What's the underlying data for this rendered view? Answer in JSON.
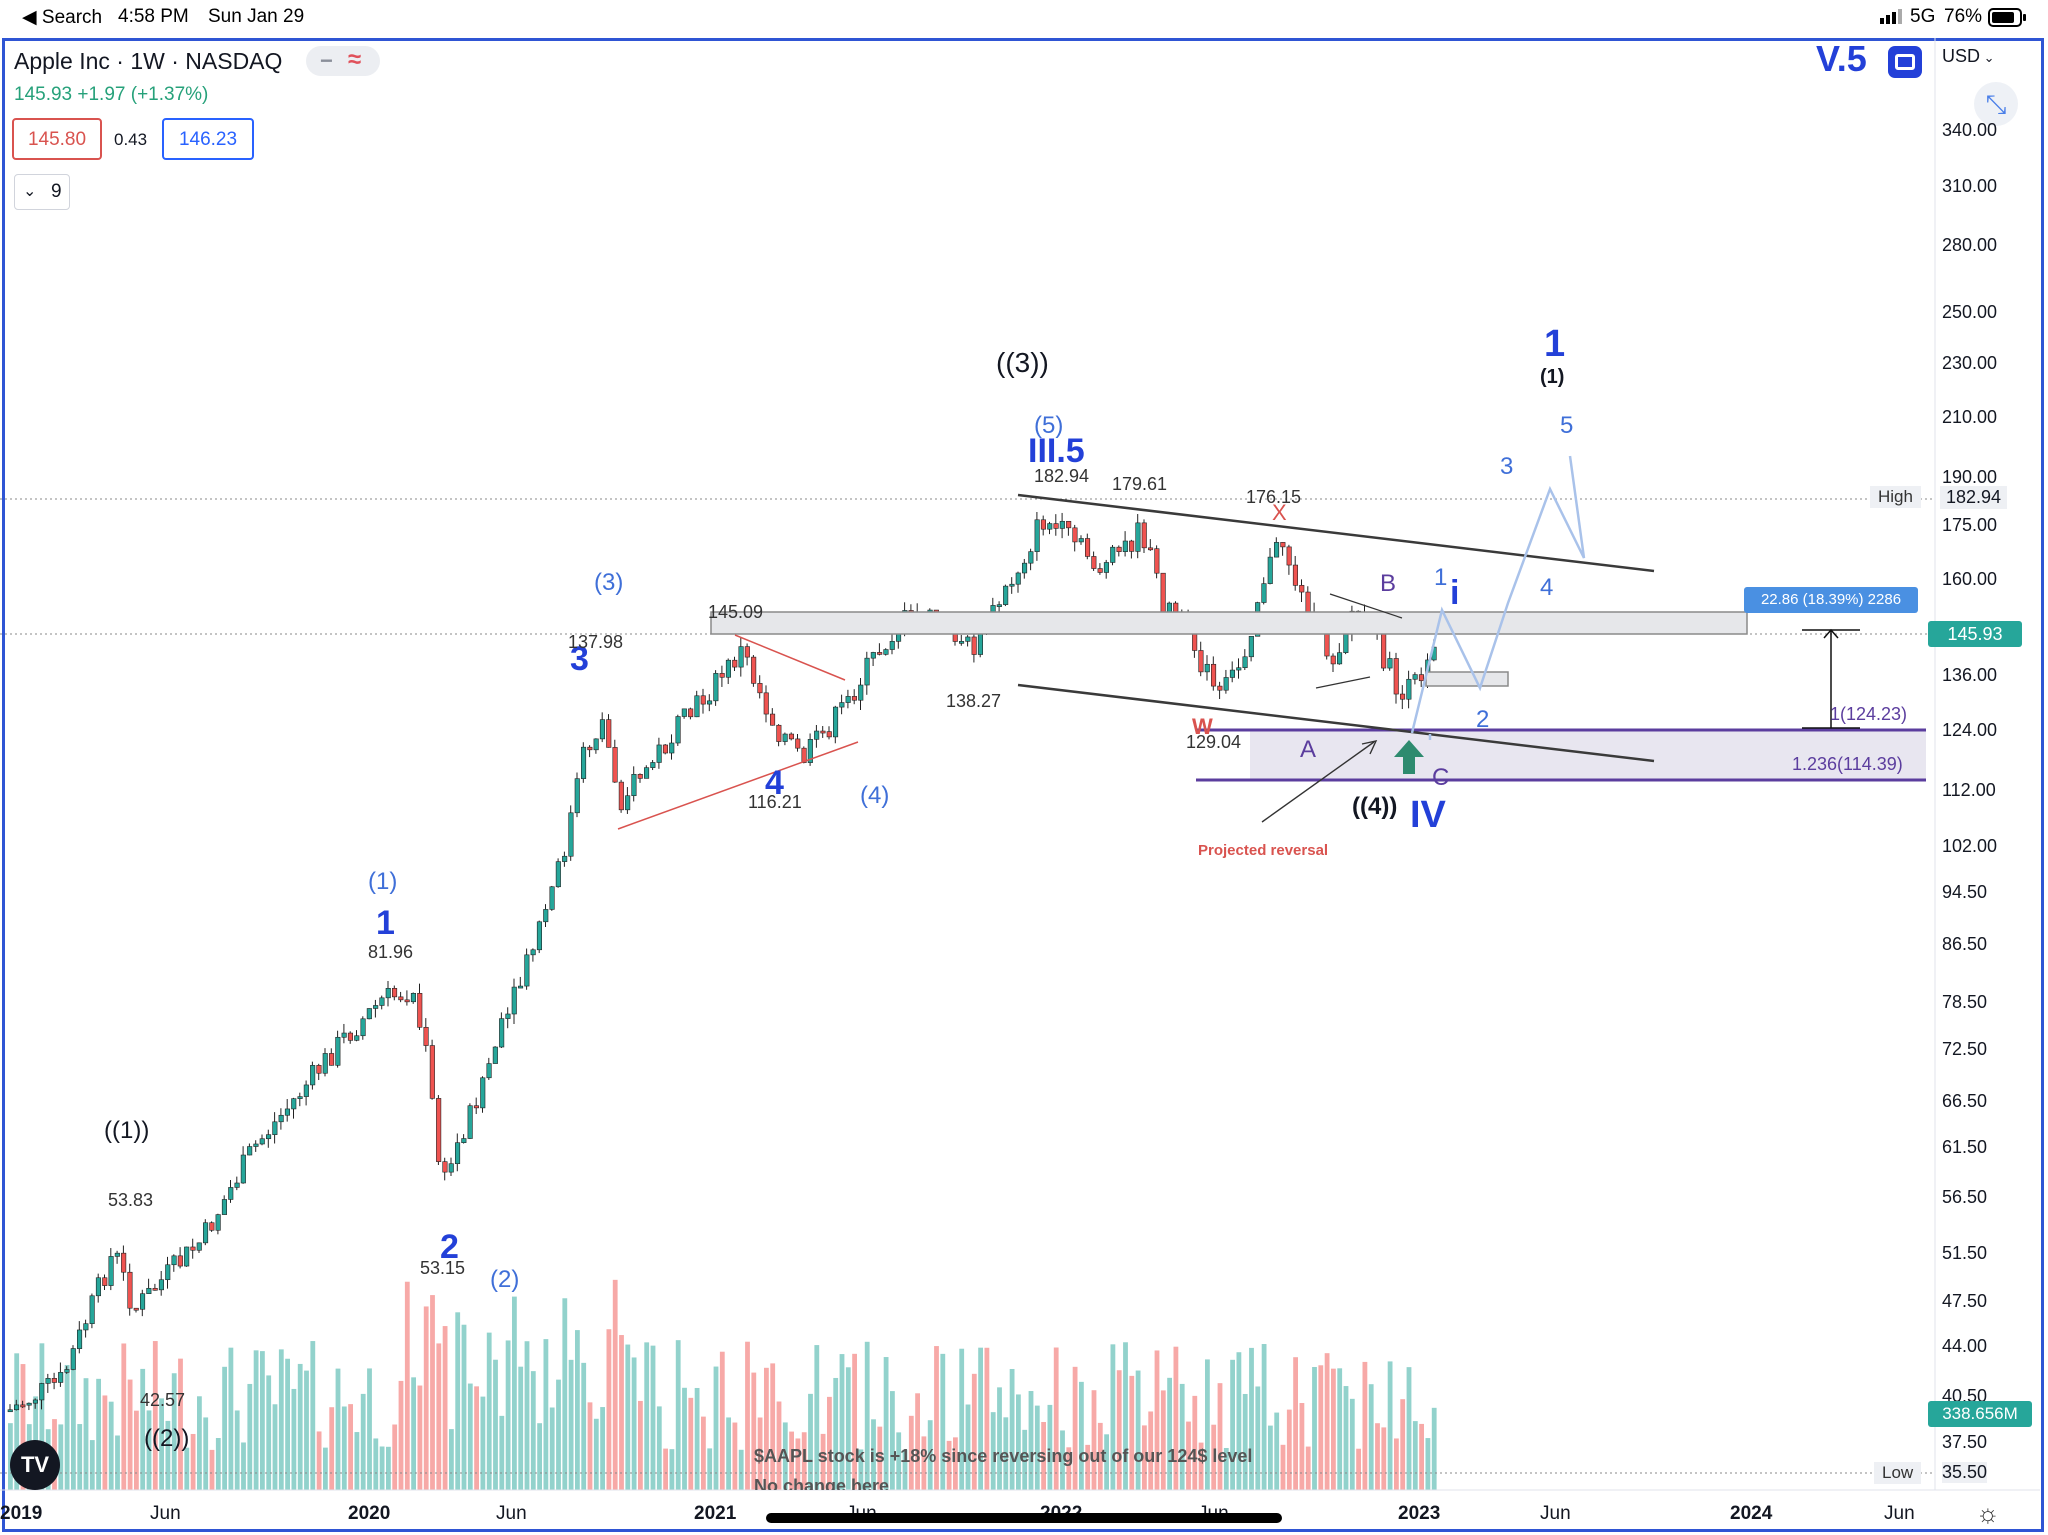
{
  "status_bar": {
    "back_label": "◀ Search",
    "time": "4:58 PM",
    "date": "Sun Jan 29",
    "network": "5G",
    "battery": "76%"
  },
  "header": {
    "symbol_title": "Apple Inc · 1W · NASDAQ",
    "last_price_change": "145.93 +1.97 (+1.37%)",
    "bid": "145.80",
    "spread": "0.43",
    "ask": "146.23",
    "indicators_label": "9",
    "version": "V.5",
    "currency": "USD"
  },
  "colors": {
    "up": "#26a69a",
    "down": "#ef5350",
    "accent": "#2340d8",
    "wave_blue": "#2a3fd6",
    "light_wave": "#3f6fd8",
    "purple": "#5b3d9e",
    "fib_zone": "#e8e6f0"
  },
  "y_axis": {
    "ticks": [
      "340.00",
      "310.00",
      "280.00",
      "250.00",
      "230.00",
      "210.00",
      "190.00",
      "175.00",
      "160.00",
      "136.00",
      "124.00",
      "112.00",
      "102.00",
      "94.50",
      "86.50",
      "78.50",
      "72.50",
      "66.50",
      "61.50",
      "56.50",
      "51.50",
      "47.50",
      "44.00",
      "40.50",
      "37.50",
      "35.50"
    ]
  },
  "x_axis": {
    "ticks": [
      "2019",
      "Jun",
      "2020",
      "Jun",
      "2021",
      "Jun",
      "2022",
      "Jun",
      "2023",
      "Jun",
      "2024",
      "Jun"
    ]
  },
  "price_badges": {
    "high_label": "High",
    "high_value": "182.94",
    "current": "145.93",
    "volume": "338.656M",
    "low_label": "Low",
    "low_value": "35.50",
    "measure": "22.86 (18.39%) 2286"
  },
  "annotations": {
    "wave_labels": [
      "((1))",
      "((2))",
      "(1)",
      "1",
      "2",
      "(2)",
      "3",
      "(3)",
      "4",
      "(4)",
      "((3))",
      "(5)",
      "III.5",
      "1",
      "(1)",
      "3",
      "5",
      "4",
      "1",
      "i",
      "2",
      "B",
      "A",
      "C",
      "((4))",
      "IV"
    ],
    "price_labels": [
      "53.83",
      "42.57",
      "81.96",
      "53.15",
      "137.98",
      "145.09",
      "116.21",
      "138.27",
      "182.94",
      "179.61",
      "176.15",
      "129.04"
    ],
    "letters": [
      "X",
      "W"
    ],
    "fib_1": "1(124.23)",
    "fib_1236": "1.236(114.39)",
    "projected_reversal": "Projected reversal",
    "caption": "$AAPL stock is +18% since reversing out of our 124$ level",
    "caption2": "No change here"
  }
}
